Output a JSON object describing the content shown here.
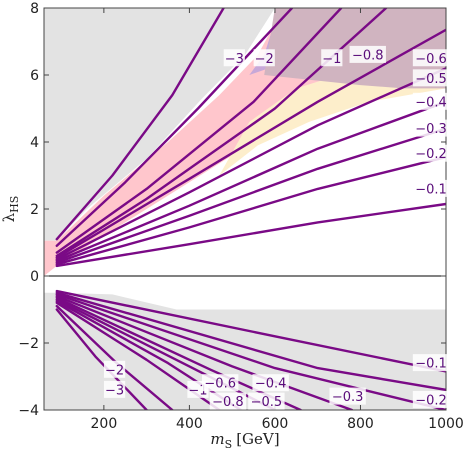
{
  "chart_data": {
    "type": "line",
    "title": "",
    "xlabel_italic": "m",
    "xlabel_sub": "S",
    "xlabel_unit": "[GeV]",
    "ylabel_main": "λ",
    "ylabel_sub": "HS",
    "xlim": [
      60,
      1000
    ],
    "ylim": [
      -4,
      8
    ],
    "x_ticks": [
      {
        "value": 200,
        "label": "200"
      },
      {
        "value": 400,
        "label": "400"
      },
      {
        "value": 600,
        "label": "600"
      },
      {
        "value": 800,
        "label": "800"
      },
      {
        "value": 1000,
        "label": "1000"
      }
    ],
    "y_ticks": [
      {
        "value": -4,
        "label": "−4"
      },
      {
        "value": -2,
        "label": "−2"
      },
      {
        "value": 0,
        "label": "0"
      },
      {
        "value": 2,
        "label": "2"
      },
      {
        "value": 4,
        "label": "4"
      },
      {
        "value": 6,
        "label": "6"
      },
      {
        "value": 8,
        "label": "8"
      }
    ],
    "colors": {
      "excluded_gray": "#e3e3e3",
      "pink": "#ffc6cc",
      "yellow": "#fdeecb",
      "lavender": "#c7a8d8",
      "mauve": "#d0b4c0",
      "contour": "#7a0a86",
      "zero_line": "#000000"
    },
    "regions": [
      {
        "name": "excluded-upper-left",
        "color": "#e3e3e3",
        "points": [
          [
            60,
            8
          ],
          [
            60,
            1.05
          ],
          [
            90,
            1.05
          ],
          [
            160,
            2.0
          ],
          [
            300,
            3.5
          ],
          [
            430,
            5.3
          ],
          [
            530,
            6.6
          ],
          [
            600,
            8
          ]
        ]
      },
      {
        "name": "excluded-lower",
        "color": "#e3e3e3",
        "points": [
          [
            60,
            -0.5
          ],
          [
            60,
            -4
          ],
          [
            1000,
            -4
          ],
          [
            1000,
            -1.0
          ],
          [
            370,
            -1.0
          ],
          [
            220,
            -0.55
          ],
          [
            90,
            -0.5
          ]
        ]
      },
      {
        "name": "pink-band",
        "color": "#ffc6cc",
        "points": [
          [
            60,
            0.0
          ],
          [
            60,
            1.05
          ],
          [
            90,
            1.05
          ],
          [
            200,
            2.4
          ],
          [
            350,
            4.0
          ],
          [
            470,
            5.4
          ],
          [
            560,
            6.6
          ],
          [
            620,
            8
          ],
          [
            1000,
            8
          ],
          [
            1000,
            7.0
          ],
          [
            700,
            5.2
          ],
          [
            500,
            3.6
          ],
          [
            300,
            2.0
          ],
          [
            150,
            0.8
          ],
          [
            90,
            0.3
          ]
        ]
      },
      {
        "name": "yellow-region",
        "color": "#fdeecb",
        "points": [
          [
            470,
            3.0
          ],
          [
            560,
            3.9
          ],
          [
            680,
            4.6
          ],
          [
            820,
            5.2
          ],
          [
            1000,
            5.6
          ],
          [
            1000,
            6.5
          ],
          [
            800,
            6.2
          ],
          [
            650,
            5.6
          ],
          [
            540,
            4.6
          ]
        ]
      },
      {
        "name": "lavender-wedge",
        "color": "#c7a8d8",
        "points": [
          [
            540,
            6.0
          ],
          [
            575,
            6.6
          ],
          [
            610,
            8
          ],
          [
            735,
            8
          ],
          [
            690,
            7.1
          ],
          [
            630,
            6.4
          ]
        ]
      },
      {
        "name": "mauve-region",
        "color": "#d0b4c0",
        "points": [
          [
            575,
            6.0
          ],
          [
            600,
            8
          ],
          [
            1000,
            8
          ],
          [
            1000,
            5.6
          ],
          [
            900,
            5.6
          ],
          [
            800,
            5.7
          ]
        ]
      }
    ],
    "positive_series": [
      {
        "label": "−3",
        "label_at": [
          505,
          6.5
        ],
        "points": [
          [
            90,
            1.1
          ],
          [
            220,
            3.0
          ],
          [
            360,
            5.4
          ],
          [
            480,
            8
          ]
        ]
      },
      {
        "label": "−2",
        "label_at": [
          575,
          6.5
        ],
        "points": [
          [
            90,
            0.9
          ],
          [
            250,
            2.8
          ],
          [
            420,
            5.0
          ],
          [
            640,
            8
          ]
        ]
      },
      {
        "label": "−1",
        "label_at": [
          733,
          6.5
        ],
        "points": [
          [
            90,
            0.7
          ],
          [
            300,
            2.6
          ],
          [
            550,
            5.2
          ],
          [
            755,
            8
          ]
        ]
      },
      {
        "label": "−0.8",
        "label_at": [
          817,
          6.6
        ],
        "points": [
          [
            90,
            0.6
          ],
          [
            300,
            2.3
          ],
          [
            600,
            5.0
          ],
          [
            860,
            8
          ]
        ]
      },
      {
        "label": "−0.6",
        "label_at": [
          965,
          6.5
        ],
        "points": [
          [
            90,
            0.55
          ],
          [
            400,
            2.9
          ],
          [
            700,
            5.2
          ],
          [
            1000,
            7.35
          ]
        ]
      },
      {
        "label": "−0.5",
        "label_at": [
          965,
          5.9
        ],
        "points": [
          [
            90,
            0.5
          ],
          [
            400,
            2.5
          ],
          [
            700,
            4.5
          ],
          [
            1000,
            6.2
          ]
        ]
      },
      {
        "label": "−0.4",
        "label_at": [
          965,
          5.2
        ],
        "points": [
          [
            90,
            0.45
          ],
          [
            400,
            2.1
          ],
          [
            700,
            3.8
          ],
          [
            1000,
            5.2
          ]
        ]
      },
      {
        "label": "−0.3",
        "label_at": [
          965,
          4.4
        ],
        "points": [
          [
            90,
            0.4
          ],
          [
            400,
            1.8
          ],
          [
            700,
            3.2
          ],
          [
            1000,
            4.4
          ]
        ]
      },
      {
        "label": "−0.2",
        "label_at": [
          965,
          3.65
        ],
        "points": [
          [
            90,
            0.35
          ],
          [
            400,
            1.45
          ],
          [
            700,
            2.6
          ],
          [
            1000,
            3.55
          ]
        ]
      },
      {
        "label": "−0.1",
        "label_at": [
          965,
          2.6
        ],
        "points": [
          [
            90,
            0.3
          ],
          [
            400,
            0.95
          ],
          [
            700,
            1.6
          ],
          [
            1000,
            2.15
          ]
        ]
      }
    ],
    "negative_series": [
      {
        "label": "−3",
        "label_at": [
          225,
          -3.4
        ],
        "points": [
          [
            90,
            -1.0
          ],
          [
            180,
            -2.4
          ],
          [
            300,
            -4.0
          ]
        ]
      },
      {
        "label": "−2",
        "label_at": [
          225,
          -2.8
        ],
        "points": [
          [
            90,
            -0.9
          ],
          [
            230,
            -2.6
          ],
          [
            360,
            -4.0
          ]
        ]
      },
      {
        "label": "−1",
        "label_at": [
          420,
          -3.4
        ],
        "points": [
          [
            90,
            -0.8
          ],
          [
            300,
            -2.5
          ],
          [
            470,
            -4.0
          ]
        ]
      },
      {
        "label": "−0.8",
        "label_at": [
          490,
          -3.75
        ],
        "points": [
          [
            90,
            -0.75
          ],
          [
            350,
            -2.6
          ],
          [
            520,
            -4.0
          ]
        ]
      },
      {
        "label": "−0.6",
        "label_at": [
          472,
          -3.2
        ],
        "points": [
          [
            90,
            -0.7
          ],
          [
            400,
            -2.7
          ],
          [
            600,
            -4.0
          ]
        ]
      },
      {
        "label": "−0.5",
        "label_at": [
          580,
          -3.75
        ],
        "points": [
          [
            90,
            -0.65
          ],
          [
            450,
            -2.8
          ],
          [
            660,
            -4.0
          ]
        ]
      },
      {
        "label": "−0.4",
        "label_at": [
          590,
          -3.2
        ],
        "points": [
          [
            90,
            -0.6
          ],
          [
            500,
            -2.7
          ],
          [
            780,
            -4.0
          ]
        ]
      },
      {
        "label": "−0.3",
        "label_at": [
          770,
          -3.6
        ],
        "points": [
          [
            90,
            -0.55
          ],
          [
            600,
            -2.75
          ],
          [
            1000,
            -4.0
          ]
        ]
      },
      {
        "label": "−0.2",
        "label_at": [
          965,
          -3.7
        ],
        "points": [
          [
            90,
            -0.5
          ],
          [
            700,
            -2.75
          ],
          [
            1000,
            -3.4
          ]
        ]
      },
      {
        "label": "−0.1",
        "label_at": [
          965,
          -2.6
        ],
        "points": [
          [
            90,
            -0.45
          ],
          [
            600,
            -1.8
          ],
          [
            1000,
            -2.85
          ]
        ]
      }
    ]
  }
}
